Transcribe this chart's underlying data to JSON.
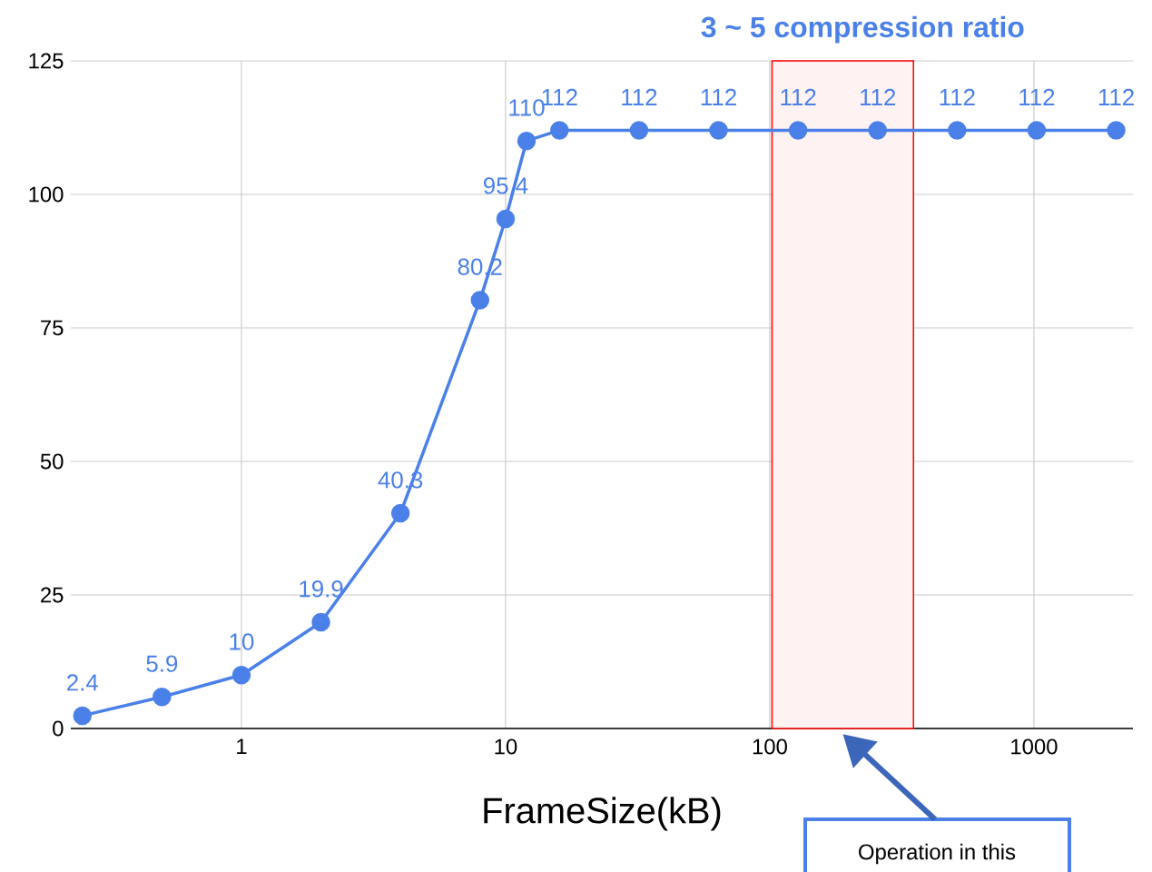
{
  "chart_data": {
    "type": "line",
    "xlabel": "FrameSize(kB)",
    "x": [
      0.25,
      0.5,
      1,
      2,
      4,
      8,
      10,
      12,
      16,
      32,
      64,
      128,
      256,
      512,
      1024,
      2048
    ],
    "series": [
      {
        "color": "#4a80e8",
        "values": [
          2.4,
          5.9,
          10,
          19.9,
          40.3,
          80.2,
          95.4,
          110,
          112,
          112,
          112,
          112,
          112,
          112,
          112,
          112
        ]
      }
    ],
    "log": "x",
    "xlim": [
      0.226,
      2370
    ],
    "xticks": [
      1,
      10,
      100,
      1000
    ],
    "ylim": [
      0,
      125
    ],
    "yticks": [
      0,
      25,
      50,
      75,
      100,
      125
    ],
    "grid": true,
    "marker": "circle",
    "line_style": "solid",
    "data_labels": true,
    "bands": [
      {
        "axis": "x",
        "from": 102,
        "to": 350,
        "label": "3 ~ 5 compression ratio",
        "color": "#ff0000"
      }
    ],
    "annotations": [
      "Operation in this"
    ]
  }
}
